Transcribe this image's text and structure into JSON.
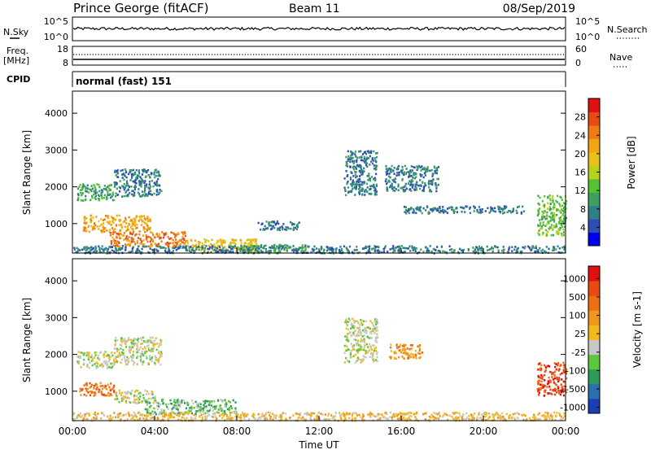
{
  "header": {
    "station": "Prince George (fitACF)",
    "beam": "Beam 11",
    "date": "08/Sep/2019"
  },
  "strip_nsky": {
    "left_label": "N.Sky",
    "right_label": "N.Search",
    "left_ticks": [
      "10^5",
      "10^0"
    ],
    "right_ticks": [
      "10^5",
      "10^0"
    ]
  },
  "strip_freq": {
    "left_label_1": "Freq.",
    "left_label_2": "[MHz]",
    "right_label": "Nave",
    "left_ticks": [
      "18",
      "8"
    ],
    "right_ticks": [
      "60",
      "0"
    ]
  },
  "cpid": {
    "label": "CPID",
    "value": "normal (fast) 151"
  },
  "chart_data": [
    {
      "type": "heatmap",
      "name": "power",
      "ylabel": "Slant Range [km]",
      "xlabel": "",
      "ylim": [
        200,
        4600
      ],
      "yticks": [
        "1000",
        "2000",
        "3000",
        "4000"
      ],
      "colorbar": {
        "label": "Power [dB]",
        "ticks": [
          "4",
          "8",
          "12",
          "16",
          "20",
          "24",
          "28"
        ],
        "colors": [
          "#0000ee",
          "#2f4db4",
          "#2f7f88",
          "#3f9f5f",
          "#55c233",
          "#b6d21a",
          "#e8c218",
          "#f3a512",
          "#f07a14",
          "#e84a14",
          "#e01010"
        ]
      },
      "regions": [
        {
          "t": [
            0.2,
            2.0
          ],
          "r": [
            1650,
            2100
          ],
          "level": 3
        },
        {
          "t": [
            2.0,
            4.3
          ],
          "r": [
            1750,
            2500
          ],
          "level": 2
        },
        {
          "t": [
            0.5,
            3.8
          ],
          "r": [
            800,
            1250
          ],
          "level": 7
        },
        {
          "t": [
            1.8,
            5.5
          ],
          "r": [
            400,
            800
          ],
          "level": 8
        },
        {
          "t": [
            5.5,
            9.0
          ],
          "r": [
            250,
            600
          ],
          "level": 6
        },
        {
          "t": [
            8.0,
            11.5
          ],
          "r": [
            250,
            450
          ],
          "level": 3
        },
        {
          "t": [
            9.0,
            11.0
          ],
          "r": [
            850,
            1100
          ],
          "level": 2
        },
        {
          "t": [
            0.0,
            24.0
          ],
          "r": [
            220,
            420
          ],
          "level": 2
        },
        {
          "t": [
            13.2,
            14.8
          ],
          "r": [
            1800,
            3000
          ],
          "level": 2
        },
        {
          "t": [
            15.2,
            17.8
          ],
          "r": [
            1900,
            2600
          ],
          "level": 2
        },
        {
          "t": [
            16.0,
            22.0
          ],
          "r": [
            1300,
            1500
          ],
          "level": 2
        },
        {
          "t": [
            22.6,
            24.0
          ],
          "r": [
            700,
            1800
          ],
          "level": 4
        }
      ]
    },
    {
      "type": "heatmap",
      "name": "velocity",
      "ylabel": "Slant Range [km]",
      "xlabel": "Time UT",
      "ylim": [
        200,
        4600
      ],
      "xticks": [
        "00:00",
        "04:00",
        "08:00",
        "12:00",
        "16:00",
        "20:00",
        "00:00"
      ],
      "yticks": [
        "1000",
        "2000",
        "3000",
        "4000"
      ],
      "colorbar": {
        "label": "Velocity [m s-1]",
        "ticks": [
          "1000",
          "500",
          "100",
          "25",
          "-25",
          "-100",
          "-500",
          "-1000"
        ],
        "colors": [
          "#1a3fb0",
          "#2a6fb0",
          "#2e9a5a",
          "#5ac83a",
          "#c8c8c8",
          "#f2b81e",
          "#f0961a",
          "#ee6e16",
          "#e84a14",
          "#e01010"
        ]
      },
      "regions": [
        {
          "t": [
            0.2,
            2.0
          ],
          "r": [
            1650,
            2100
          ],
          "level": 4
        },
        {
          "t": [
            2.0,
            4.3
          ],
          "r": [
            1750,
            2500
          ],
          "level": 4
        },
        {
          "t": [
            0.3,
            2.0
          ],
          "r": [
            900,
            1250
          ],
          "level": 7
        },
        {
          "t": [
            2.0,
            4.0
          ],
          "r": [
            700,
            1050
          ],
          "level": 4
        },
        {
          "t": [
            3.5,
            8.0
          ],
          "r": [
            400,
            800
          ],
          "level": 3
        },
        {
          "t": [
            0.0,
            24.0
          ],
          "r": [
            220,
            450
          ],
          "level": 5
        },
        {
          "t": [
            13.2,
            14.8
          ],
          "r": [
            1800,
            3000
          ],
          "level": 4
        },
        {
          "t": [
            15.4,
            17.0
          ],
          "r": [
            1900,
            2300
          ],
          "level": 6
        },
        {
          "t": [
            22.6,
            24.0
          ],
          "r": [
            900,
            1800
          ],
          "level": 8
        }
      ]
    }
  ]
}
